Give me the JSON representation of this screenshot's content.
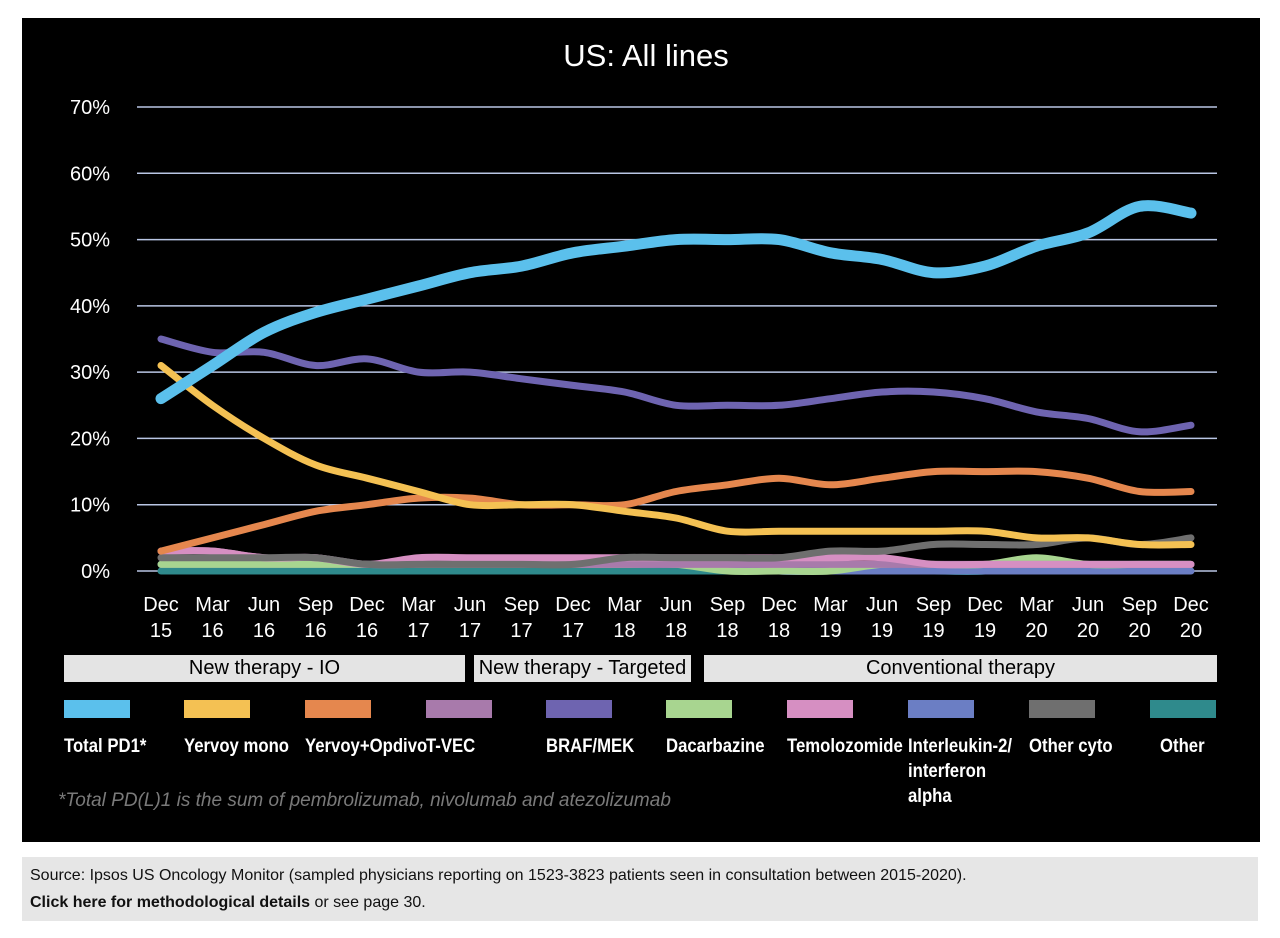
{
  "chart_data": {
    "type": "line",
    "title": "US: All lines",
    "xlabel": "",
    "ylabel": "",
    "ylim": [
      0,
      70
    ],
    "yticks": [
      "0%",
      "10%",
      "20%",
      "30%",
      "40%",
      "50%",
      "60%",
      "70%"
    ],
    "grid": true,
    "categories": [
      [
        "Dec",
        "15"
      ],
      [
        "Mar",
        "16"
      ],
      [
        "Jun",
        "16"
      ],
      [
        "Sep",
        "16"
      ],
      [
        "Dec",
        "16"
      ],
      [
        "Mar",
        "17"
      ],
      [
        "Jun",
        "17"
      ],
      [
        "Sep",
        "17"
      ],
      [
        "Dec",
        "17"
      ],
      [
        "Mar",
        "18"
      ],
      [
        "Jun",
        "18"
      ],
      [
        "Sep",
        "18"
      ],
      [
        "Dec",
        "18"
      ],
      [
        "Mar",
        "19"
      ],
      [
        "Jun",
        "19"
      ],
      [
        "Sep",
        "19"
      ],
      [
        "Dec",
        "19"
      ],
      [
        "Mar",
        "20"
      ],
      [
        "Jun",
        "20"
      ],
      [
        "Sep",
        "20"
      ],
      [
        "Dec",
        "20"
      ]
    ],
    "series": [
      {
        "name": "Total PD1*",
        "color": "#5bc0ec",
        "values": [
          26,
          31,
          36,
          39,
          41,
          43,
          45,
          46,
          48,
          49,
          50,
          50,
          50,
          48,
          47,
          45,
          46,
          49,
          51,
          55,
          54
        ]
      },
      {
        "name": "Yervoy mono",
        "color": "#f4c153",
        "values": [
          31,
          25,
          20,
          16,
          14,
          12,
          10,
          10,
          10,
          9,
          8,
          6,
          6,
          6,
          6,
          6,
          6,
          5,
          5,
          4,
          4
        ]
      },
      {
        "name": "Yervoy+Opdivo",
        "color": "#e5874e",
        "values": [
          3,
          5,
          7,
          9,
          10,
          11,
          11,
          10,
          10,
          10,
          12,
          13,
          14,
          13,
          14,
          15,
          15,
          15,
          14,
          12,
          12
        ]
      },
      {
        "name": "T-VEC",
        "color": "#a87aab",
        "values": [
          3,
          3,
          2,
          2,
          1,
          1,
          1,
          1,
          1,
          1,
          1,
          1,
          1,
          1,
          1,
          1,
          1,
          1,
          1,
          1,
          1
        ]
      },
      {
        "name": "BRAF/MEK",
        "color": "#6e64b0",
        "values": [
          35,
          33,
          33,
          31,
          32,
          30,
          30,
          29,
          28,
          27,
          25,
          25,
          25,
          26,
          27,
          27,
          26,
          24,
          23,
          21,
          22
        ]
      },
      {
        "name": "Dacarbazine",
        "color": "#a8d590",
        "values": [
          1,
          1,
          1,
          1,
          1,
          1,
          1,
          1,
          1,
          1,
          1,
          0,
          0,
          0,
          1,
          1,
          1,
          2,
          1,
          1,
          1
        ]
      },
      {
        "name": "Temolozomide",
        "color": "#d68fc2",
        "values": [
          3,
          3,
          2,
          2,
          1,
          2,
          2,
          2,
          2,
          2,
          2,
          2,
          2,
          2,
          2,
          1,
          1,
          1,
          1,
          1,
          1
        ]
      },
      {
        "name": "Interleukin-2/\ninterferon alpha",
        "color": "#6b7ec4",
        "values": [
          1,
          1,
          1,
          1,
          1,
          1,
          1,
          1,
          1,
          1,
          1,
          1,
          0,
          0,
          0,
          0,
          0,
          0,
          0,
          0,
          0
        ]
      },
      {
        "name": "Other cyto",
        "color": "#6f6f6f",
        "values": [
          2,
          2,
          2,
          2,
          1,
          1,
          1,
          1,
          1,
          2,
          2,
          2,
          2,
          3,
          3,
          4,
          4,
          4,
          5,
          4,
          5
        ]
      },
      {
        "name": "Other",
        "color": "#2f8a8c",
        "values": [
          0,
          0,
          0,
          0,
          0,
          0,
          0,
          0,
          0,
          0,
          0,
          0,
          0,
          0,
          0,
          0,
          0,
          1,
          1,
          1,
          1
        ]
      }
    ],
    "bands": [
      {
        "label": "New therapy - IO"
      },
      {
        "label": "New therapy - Targeted"
      },
      {
        "label": "Conventional therapy"
      }
    ],
    "legend_placement": "bottom",
    "footnote": "*Total PD(L)1 is the sum of pembrolizumab, nivolumab and atezolizumab"
  },
  "source": {
    "text": "Source: Ipsos US Oncology Monitor (sampled physicians reporting on 1523-3823 patients seen in consultation between 2015-2020).",
    "link_label": "Click here for methodological details",
    "link_suffix": " or see page 30."
  }
}
